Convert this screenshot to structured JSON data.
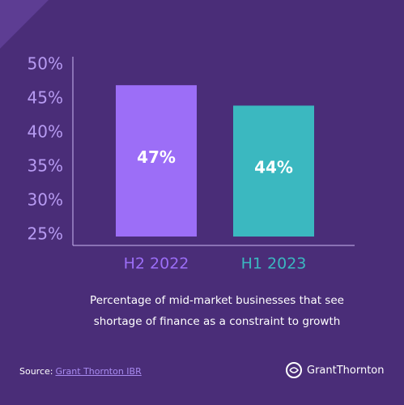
{
  "chart_data": {
    "type": "bar",
    "categories": [
      "H2 2022",
      "H1 2023"
    ],
    "values": [
      47,
      44
    ],
    "value_labels": [
      "47%",
      "44%"
    ],
    "colors": [
      "#9c6ef7",
      "#3bb8c0"
    ],
    "ylim": [
      25,
      50
    ],
    "yticks": [
      {
        "value": 25,
        "label": "25%"
      },
      {
        "value": 30,
        "label": "30%"
      },
      {
        "value": 35,
        "label": "35%"
      },
      {
        "value": 40,
        "label": "40%"
      },
      {
        "value": 45,
        "label": "45%"
      },
      {
        "value": 50,
        "label": "50%"
      }
    ],
    "caption": "Percentage of mid-market businesses that see shortage of finance as a constraint to growth"
  },
  "footer": {
    "source_label": "Source:",
    "source_link": "Grant Thornton IBR",
    "logo": "GrantThornton"
  }
}
